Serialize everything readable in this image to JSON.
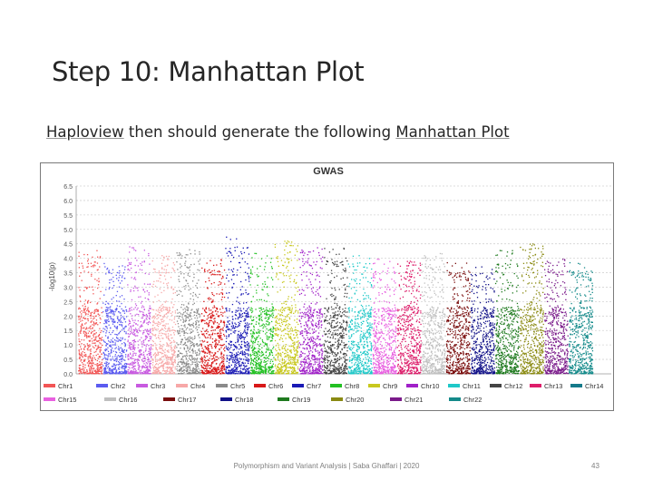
{
  "slide": {
    "title": "Step 10: Manhattan Plot",
    "subtitle_parts": [
      "Haploview",
      " then should generate the following ",
      "Manhattan Plot"
    ],
    "footer": "Polymorphism and Variant Analysis | Saba Ghaffari | 2020",
    "page_number": "43"
  },
  "chart_data": {
    "type": "scatter",
    "title": "GWAS",
    "ylabel": "-log10(p)",
    "xlabel": "",
    "ylim": [
      0,
      6.5
    ],
    "yticks": [
      "0.0",
      "0.5",
      "1.0",
      "1.5",
      "2.0",
      "2.5",
      "3.0",
      "3.5",
      "4.0",
      "4.5",
      "5.0",
      "5.5",
      "6.0",
      "6.5"
    ],
    "grid": true,
    "legend_position": "bottom",
    "series": [
      {
        "name": "Chr1",
        "color": "#f25555",
        "peak": 4.3
      },
      {
        "name": "Chr2",
        "color": "#5b5bf0",
        "peak": 3.9
      },
      {
        "name": "Chr3",
        "color": "#c85ae0",
        "peak": 4.4
      },
      {
        "name": "Chr4",
        "color": "#f7a8a8",
        "peak": 4.1
      },
      {
        "name": "Chr5",
        "color": "#8a8a8a",
        "peak": 4.3
      },
      {
        "name": "Chr6",
        "color": "#d81818",
        "peak": 4.0
      },
      {
        "name": "Chr7",
        "color": "#1a1ab5",
        "peak": 4.8
      },
      {
        "name": "Chr8",
        "color": "#22c022",
        "peak": 4.2
      },
      {
        "name": "Chr9",
        "color": "#c8c81e",
        "peak": 4.6
      },
      {
        "name": "Chr10",
        "color": "#a020c8",
        "peak": 4.4
      },
      {
        "name": "Chr11",
        "color": "#1ec8c8",
        "peak": 4.2
      },
      {
        "name": "Chr12",
        "color": "#444444",
        "peak": 4.4
      },
      {
        "name": "Chr13",
        "color": "#dd1d6a",
        "peak": 3.9
      },
      {
        "name": "Chr14",
        "color": "#147a8a",
        "peak": 4.1
      },
      {
        "name": "Chr15",
        "color": "#e860e0",
        "peak": 4.0
      },
      {
        "name": "Chr16",
        "color": "#bfbfbf",
        "peak": 4.2
      },
      {
        "name": "Chr17",
        "color": "#7a0e0e",
        "peak": 3.9
      },
      {
        "name": "Chr18",
        "color": "#101088",
        "peak": 3.8
      },
      {
        "name": "Chr19",
        "color": "#1f7a1f",
        "peak": 4.3
      },
      {
        "name": "Chr20",
        "color": "#8a8a12",
        "peak": 4.5
      },
      {
        "name": "Chr21",
        "color": "#7a1a8a",
        "peak": 4.0
      },
      {
        "name": "Chr22",
        "color": "#148a8a",
        "peak": 3.9
      }
    ],
    "plot_order": [
      "Chr1",
      "Chr2",
      "Chr3",
      "Chr4",
      "Chr5",
      "Chr6",
      "Chr7",
      "Chr8",
      "Chr9",
      "Chr10",
      "Chr12",
      "Chr11",
      "Chr15",
      "Chr13",
      "Chr16",
      "Chr17",
      "Chr18",
      "Chr19",
      "Chr20",
      "Chr21",
      "Chr22"
    ]
  }
}
